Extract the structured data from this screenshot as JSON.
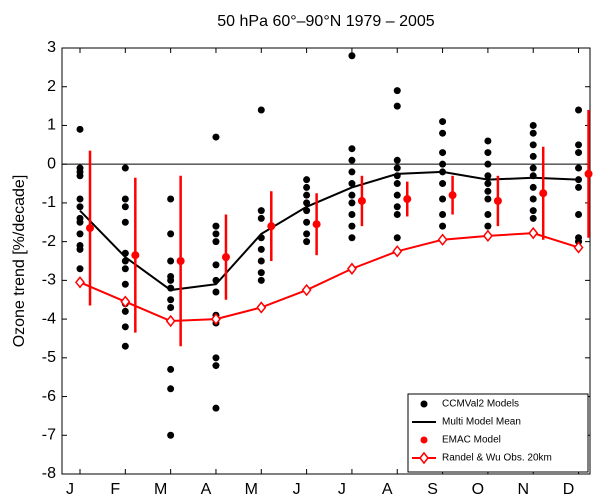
{
  "chart_data": {
    "type": "line",
    "title": "50 hPa 60°–90°N 1979 – 2005",
    "y_label": "Ozone trend [%/decade]",
    "categories": [
      "J",
      "F",
      "M",
      "A",
      "M",
      "J",
      "J",
      "A",
      "S",
      "O",
      "N",
      "D"
    ],
    "ylim": [
      -8,
      3
    ],
    "yticks": [
      -8,
      -7,
      -6,
      -5,
      -4,
      -3,
      -2,
      -1,
      0,
      1,
      2,
      3
    ],
    "hlines": [
      0
    ],
    "legend": "lower right",
    "series": [
      {
        "name": "CCMVal2 Models",
        "type": "dots",
        "color": "#000000",
        "values": [
          [
            0.9,
            -0.1,
            -0.2,
            -0.3,
            -0.9,
            -1.1,
            -1.4,
            -1.5,
            -1.8,
            -2.1,
            -2.2,
            -2.7
          ],
          [
            -0.1,
            -0.9,
            -1.1,
            -1.5,
            -2.3,
            -2.5,
            -2.7,
            -3.1,
            -3.6,
            -3.8,
            -4.2,
            -4.7
          ],
          [
            -0.9,
            -1.8,
            -2.5,
            -2.9,
            -3.0,
            -3.2,
            -3.5,
            -3.7,
            -5.3,
            -5.8,
            -7.0
          ],
          [
            0.7,
            -1.6,
            -1.8,
            -2.0,
            -2.6,
            -3.0,
            -3.3,
            -3.9,
            -4.1,
            -5.0,
            -5.2,
            -6.3
          ],
          [
            1.4,
            -1.2,
            -1.4,
            -1.9,
            -2.2,
            -2.5,
            -2.8,
            -3.0
          ],
          [
            -0.4,
            -0.6,
            -0.8,
            -1.0,
            -1.2,
            -1.5,
            -1.8,
            -2.0
          ],
          [
            2.8,
            0.4,
            0.1,
            -0.2,
            -0.5,
            -0.8,
            -1.0,
            -1.3,
            -1.6,
            -1.9
          ],
          [
            1.9,
            1.5,
            0.1,
            -0.1,
            -0.3,
            -0.5,
            -0.8,
            -1.1,
            -1.3,
            -1.9
          ],
          [
            1.1,
            0.8,
            0.3,
            0.0,
            -0.2,
            -0.5,
            -0.9,
            -1.3,
            -1.6
          ],
          [
            0.6,
            0.3,
            0.0,
            -0.3,
            -0.5,
            -0.7,
            -0.9,
            -1.3,
            -1.6
          ],
          [
            1.0,
            0.8,
            0.5,
            0.2,
            -0.1,
            -0.3,
            -0.6,
            -0.9,
            -1.2,
            -1.4
          ],
          [
            1.4,
            0.5,
            0.3,
            -0.1,
            -0.4,
            -0.6,
            -1.3,
            -1.9,
            -2.0
          ]
        ]
      },
      {
        "name": "Multi Model Mean",
        "type": "line",
        "color": "#000000",
        "values": [
          -1.2,
          -2.4,
          -3.25,
          -3.1,
          -1.8,
          -1.1,
          -0.6,
          -0.25,
          -0.2,
          -0.4,
          -0.35,
          -0.4
        ]
      },
      {
        "name": "EMAC Model",
        "type": "errorbar",
        "color": "#ff0000",
        "values": [
          -1.65,
          -2.35,
          -2.5,
          -2.4,
          -1.6,
          -1.55,
          -0.95,
          -0.9,
          -0.8,
          -0.95,
          -0.75,
          -0.25
        ],
        "errors": [
          2.0,
          2.0,
          2.2,
          1.1,
          0.9,
          0.8,
          0.65,
          0.45,
          0.5,
          0.65,
          1.2,
          1.65
        ]
      },
      {
        "name": "Randel & Wu Obs. 20km",
        "type": "diamond-line",
        "color": "#ff0000",
        "values": [
          -3.05,
          -3.55,
          -4.05,
          -4.0,
          -3.7,
          -3.25,
          -2.7,
          -2.25,
          -1.95,
          -1.85,
          -1.78,
          -2.15
        ]
      }
    ]
  }
}
